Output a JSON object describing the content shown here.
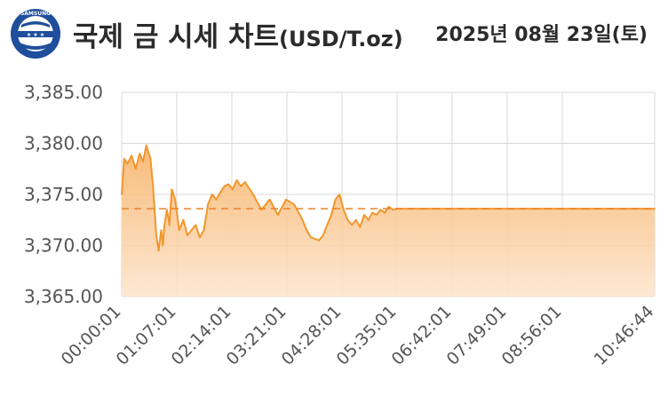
{
  "header": {
    "logo_icon": "samsung-globe-logo",
    "logo_text": "SAMSUNG",
    "title": "국제 금 시세 차트",
    "unit": "(USD/T.oz)",
    "date": "2025년 08월 23일(토)"
  },
  "colors": {
    "line": "#f2962c",
    "fill_top": "#f7b36a",
    "fill_bottom": "#fde6cf",
    "grid": "#d8d8d8",
    "reference": "#e8822a"
  },
  "chart_data": {
    "type": "area",
    "title": "국제 금 시세 차트",
    "unit": "USD/T.oz",
    "ylim": [
      3365,
      3385
    ],
    "y_ticks": [
      "3,385.00",
      "3,380.00",
      "3,375.00",
      "3,370.00",
      "3,365.00"
    ],
    "y_tick_values": [
      3385,
      3380,
      3375,
      3370,
      3365
    ],
    "x_ticks": [
      "00:00:01",
      "01:07:01",
      "02:14:01",
      "03:21:01",
      "04:28:01",
      "05:35:01",
      "06:42:01",
      "07:49:01",
      "08:56:01",
      "10:46:44"
    ],
    "grid": true,
    "reference_line": 3373.6,
    "series": [
      {
        "x": [
          "00:00:01",
          "00:03:00",
          "00:07:00",
          "00:12:00",
          "00:17:00",
          "00:22:00",
          "00:26:00",
          "00:30:00",
          "00:35:00",
          "00:38:00",
          "00:40:00",
          "00:42:00",
          "00:45:00",
          "00:48:00",
          "00:50:00",
          "00:52:00",
          "00:55:00",
          "00:58:00",
          "01:01:00",
          "01:05:00",
          "01:10:00",
          "01:15:00",
          "01:20:00",
          "01:25:00",
          "01:30:00",
          "01:35:00",
          "01:40:00",
          "01:45:00",
          "01:50:00",
          "01:55:00",
          "02:00:00",
          "02:05:00",
          "02:10:00",
          "02:15:00",
          "02:20:00",
          "02:25:00",
          "02:30:00",
          "02:40:00",
          "02:50:00",
          "03:00:00",
          "03:10:00",
          "03:20:00",
          "03:30:00",
          "03:40:00",
          "03:45:00",
          "03:50:00",
          "04:00:00",
          "04:05:00",
          "04:10:00",
          "04:15:00",
          "04:20:00",
          "04:25:00",
          "04:30:00",
          "04:35:00",
          "04:40:00",
          "04:45:00",
          "04:50:00",
          "04:55:00",
          "05:00:00",
          "05:05:00",
          "05:10:00",
          "05:15:00",
          "05:20:00",
          "05:25:00",
          "05:30:00",
          "05:35:00",
          "05:40:00",
          "05:45:00",
          "05:50:00"
        ],
        "values": [
          3375.0,
          3378.5,
          3378.0,
          3378.8,
          3377.5,
          3379.0,
          3378.2,
          3379.8,
          3378.5,
          3376.0,
          3373.5,
          3371.0,
          3369.5,
          3371.5,
          3370.0,
          3372.0,
          3373.5,
          3372.0,
          3375.5,
          3374.5,
          3371.5,
          3372.5,
          3371.0,
          3371.5,
          3372.0,
          3370.8,
          3371.5,
          3374.0,
          3375.0,
          3374.5,
          3375.2,
          3375.8,
          3376.0,
          3375.5,
          3376.4,
          3375.8,
          3376.2,
          3375.0,
          3373.5,
          3374.5,
          3373.0,
          3374.5,
          3374.0,
          3372.5,
          3371.5,
          3370.8,
          3370.5,
          3371.0,
          3372.0,
          3373.0,
          3374.5,
          3375.0,
          3373.5,
          3372.5,
          3372.0,
          3372.5,
          3371.8,
          3373.0,
          3372.5,
          3373.2,
          3373.0,
          3373.5,
          3373.2,
          3373.8,
          3373.5,
          3373.6,
          3373.6,
          3373.6,
          3373.6
        ]
      }
    ]
  }
}
